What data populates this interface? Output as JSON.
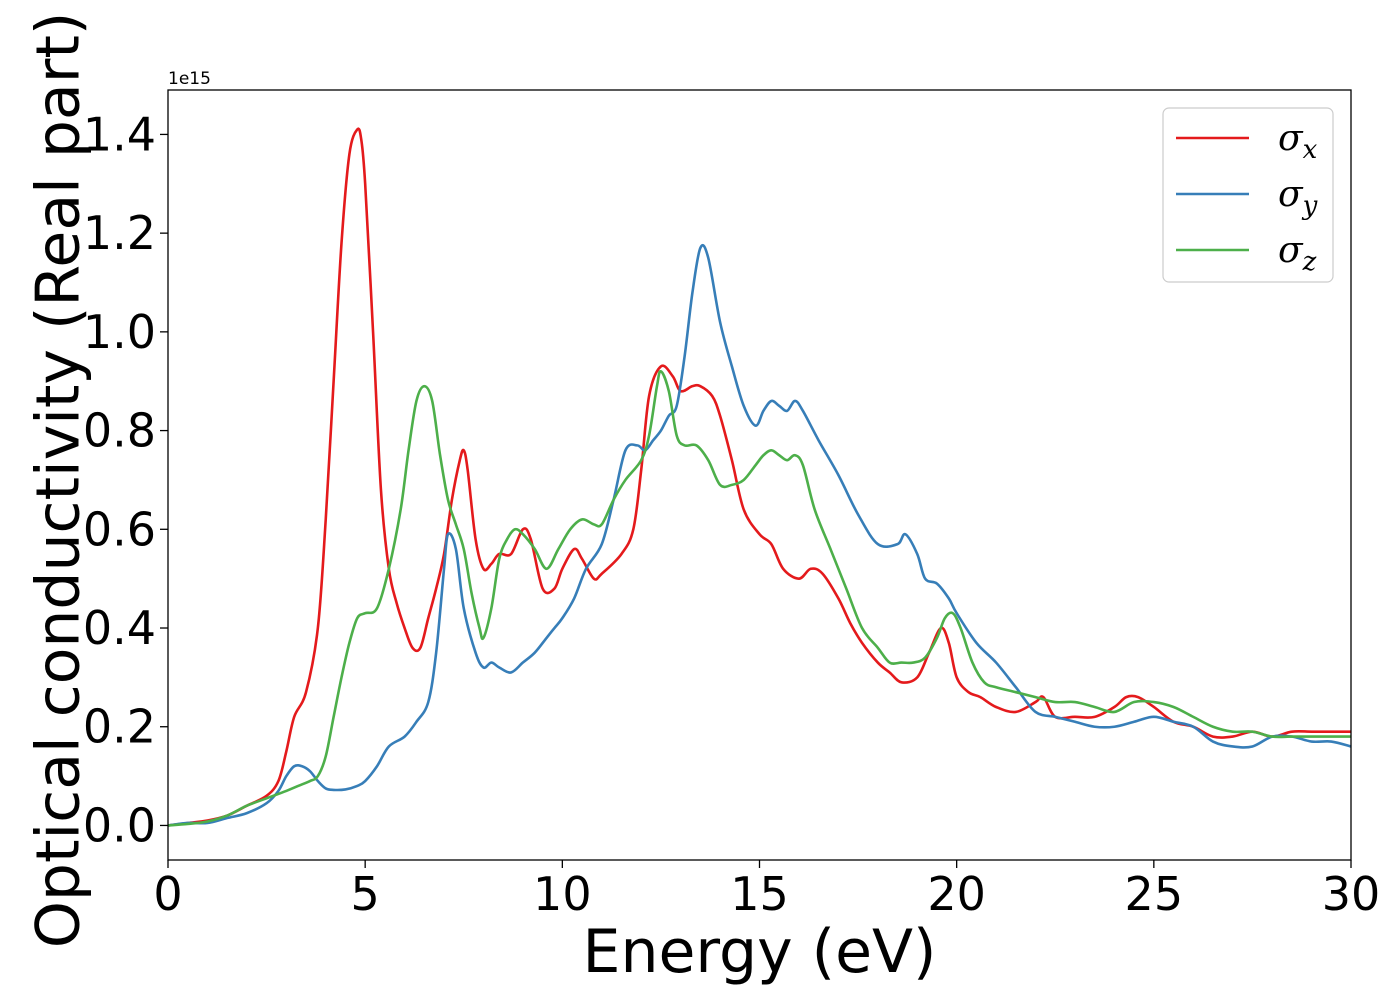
{
  "chart_data": {
    "type": "line",
    "title": "",
    "xlabel": "Energy (eV)",
    "ylabel": "Optical conductivity (Real part)",
    "y_offset_label": "1e15",
    "xlim": [
      0,
      30
    ],
    "ylim": [
      -0.07,
      1.49
    ],
    "xticks": [
      0,
      5,
      10,
      15,
      20,
      25,
      30
    ],
    "xtick_labels": [
      "0",
      "5",
      "10",
      "15",
      "20",
      "25",
      "30"
    ],
    "yticks": [
      0.0,
      0.2,
      0.4,
      0.6,
      0.8,
      1.0,
      1.2,
      1.4
    ],
    "ytick_labels": [
      "0.0",
      "0.2",
      "0.4",
      "0.6",
      "0.8",
      "1.0",
      "1.2",
      "1.4"
    ],
    "grid": false,
    "legend_position": "top-right",
    "series": [
      {
        "name": "σ",
        "subscript": "x",
        "color": "#e41a1c",
        "x": [
          0,
          0.5,
          1,
          1.5,
          2,
          2.5,
          2.8,
          3.0,
          3.2,
          3.5,
          3.8,
          4.0,
          4.2,
          4.4,
          4.6,
          4.8,
          4.9,
          5.0,
          5.2,
          5.4,
          5.6,
          5.8,
          6.0,
          6.2,
          6.4,
          6.6,
          6.8,
          7.0,
          7.2,
          7.4,
          7.5,
          7.6,
          7.8,
          8.0,
          8.2,
          8.4,
          8.7,
          9.0,
          9.2,
          9.5,
          9.8,
          10.0,
          10.3,
          10.5,
          10.8,
          11.0,
          11.5,
          11.8,
          12.0,
          12.2,
          12.5,
          12.8,
          13.0,
          13.3,
          13.5,
          13.8,
          14.0,
          14.3,
          14.6,
          15.0,
          15.3,
          15.6,
          16.0,
          16.3,
          16.6,
          17.0,
          17.3,
          17.6,
          18.0,
          18.3,
          18.6,
          19.0,
          19.3,
          19.6,
          19.8,
          20.0,
          20.3,
          20.6,
          21.0,
          21.5,
          22.0,
          22.2,
          22.5,
          23.0,
          23.5,
          24.0,
          24.3,
          24.6,
          25.0,
          25.5,
          26.0,
          26.5,
          27.0,
          27.5,
          28.0,
          28.5,
          29.0,
          29.5,
          30.0
        ],
        "values": [
          0.0,
          0.005,
          0.01,
          0.02,
          0.04,
          0.06,
          0.09,
          0.15,
          0.22,
          0.27,
          0.4,
          0.62,
          0.9,
          1.18,
          1.36,
          1.41,
          1.39,
          1.3,
          1.0,
          0.68,
          0.52,
          0.45,
          0.4,
          0.36,
          0.36,
          0.42,
          0.48,
          0.55,
          0.66,
          0.74,
          0.76,
          0.72,
          0.58,
          0.52,
          0.53,
          0.55,
          0.55,
          0.6,
          0.58,
          0.48,
          0.48,
          0.52,
          0.56,
          0.54,
          0.5,
          0.51,
          0.55,
          0.6,
          0.72,
          0.87,
          0.93,
          0.91,
          0.88,
          0.89,
          0.89,
          0.87,
          0.83,
          0.74,
          0.64,
          0.59,
          0.57,
          0.52,
          0.5,
          0.52,
          0.51,
          0.46,
          0.41,
          0.37,
          0.33,
          0.31,
          0.29,
          0.3,
          0.35,
          0.4,
          0.37,
          0.3,
          0.27,
          0.26,
          0.24,
          0.23,
          0.25,
          0.26,
          0.22,
          0.22,
          0.22,
          0.24,
          0.26,
          0.26,
          0.24,
          0.21,
          0.2,
          0.18,
          0.18,
          0.19,
          0.18,
          0.19,
          0.19,
          0.19,
          0.19
        ]
      },
      {
        "name": "σ",
        "subscript": "y",
        "color": "#377eb8",
        "x": [
          0,
          0.5,
          1,
          1.5,
          2,
          2.5,
          2.8,
          3.0,
          3.2,
          3.4,
          3.6,
          3.8,
          4.0,
          4.2,
          4.5,
          4.8,
          5.0,
          5.3,
          5.6,
          6.0,
          6.3,
          6.6,
          6.8,
          7.0,
          7.1,
          7.3,
          7.5,
          7.8,
          8.0,
          8.2,
          8.4,
          8.7,
          9.0,
          9.3,
          9.6,
          9.8,
          10.0,
          10.3,
          10.6,
          11.0,
          11.3,
          11.6,
          11.9,
          12.1,
          12.3,
          12.5,
          12.7,
          12.9,
          13.1,
          13.3,
          13.5,
          13.7,
          14.0,
          14.3,
          14.6,
          14.9,
          15.1,
          15.3,
          15.5,
          15.7,
          15.9,
          16.1,
          16.5,
          17.0,
          17.5,
          18.0,
          18.5,
          18.7,
          19.0,
          19.2,
          19.5,
          19.8,
          20.0,
          20.5,
          21.0,
          21.5,
          22.0,
          22.5,
          23.0,
          23.5,
          24.0,
          24.5,
          25.0,
          25.5,
          26.0,
          26.5,
          27.0,
          27.5,
          28.0,
          28.5,
          29.0,
          29.5,
          30.0
        ],
        "values": [
          0.0,
          0.005,
          0.005,
          0.015,
          0.025,
          0.045,
          0.07,
          0.1,
          0.12,
          0.12,
          0.11,
          0.09,
          0.075,
          0.072,
          0.073,
          0.08,
          0.09,
          0.12,
          0.16,
          0.18,
          0.21,
          0.25,
          0.35,
          0.52,
          0.59,
          0.56,
          0.44,
          0.35,
          0.32,
          0.33,
          0.32,
          0.31,
          0.33,
          0.35,
          0.38,
          0.4,
          0.42,
          0.46,
          0.52,
          0.57,
          0.66,
          0.76,
          0.77,
          0.76,
          0.78,
          0.8,
          0.83,
          0.85,
          0.95,
          1.08,
          1.17,
          1.15,
          1.02,
          0.93,
          0.85,
          0.81,
          0.84,
          0.86,
          0.85,
          0.84,
          0.86,
          0.84,
          0.78,
          0.71,
          0.63,
          0.57,
          0.57,
          0.59,
          0.55,
          0.5,
          0.49,
          0.46,
          0.43,
          0.37,
          0.33,
          0.28,
          0.23,
          0.22,
          0.21,
          0.2,
          0.2,
          0.21,
          0.22,
          0.21,
          0.2,
          0.17,
          0.16,
          0.16,
          0.18,
          0.18,
          0.17,
          0.17,
          0.16
        ]
      },
      {
        "name": "σ",
        "subscript": "z",
        "color": "#4daf4a",
        "x": [
          0,
          0.5,
          1,
          1.5,
          2,
          2.5,
          3.0,
          3.3,
          3.6,
          3.8,
          4.0,
          4.2,
          4.4,
          4.6,
          4.8,
          5.0,
          5.3,
          5.6,
          5.9,
          6.1,
          6.3,
          6.5,
          6.7,
          6.9,
          7.1,
          7.3,
          7.5,
          7.7,
          7.9,
          8.0,
          8.2,
          8.4,
          8.6,
          8.8,
          9.0,
          9.3,
          9.6,
          9.9,
          10.2,
          10.5,
          10.8,
          11.0,
          11.3,
          11.6,
          12.0,
          12.2,
          12.4,
          12.5,
          12.7,
          12.9,
          13.1,
          13.4,
          13.7,
          14.0,
          14.3,
          14.6,
          14.9,
          15.1,
          15.3,
          15.5,
          15.7,
          15.9,
          16.1,
          16.4,
          16.8,
          17.2,
          17.6,
          18.0,
          18.3,
          18.6,
          18.9,
          19.2,
          19.5,
          19.7,
          19.9,
          20.1,
          20.4,
          20.7,
          21.0,
          21.5,
          22.0,
          22.5,
          23.0,
          23.5,
          24.0,
          24.5,
          25.0,
          25.5,
          26.0,
          26.5,
          27.0,
          27.5,
          28.0,
          28.5,
          29.0,
          29.5,
          30.0
        ],
        "values": [
          0.0,
          0.003,
          0.008,
          0.02,
          0.04,
          0.055,
          0.07,
          0.08,
          0.09,
          0.1,
          0.14,
          0.22,
          0.3,
          0.37,
          0.42,
          0.43,
          0.44,
          0.52,
          0.64,
          0.76,
          0.86,
          0.89,
          0.86,
          0.75,
          0.66,
          0.61,
          0.56,
          0.47,
          0.4,
          0.38,
          0.44,
          0.54,
          0.58,
          0.6,
          0.59,
          0.56,
          0.52,
          0.56,
          0.6,
          0.62,
          0.61,
          0.61,
          0.66,
          0.7,
          0.74,
          0.79,
          0.89,
          0.92,
          0.88,
          0.79,
          0.77,
          0.77,
          0.74,
          0.69,
          0.69,
          0.7,
          0.73,
          0.75,
          0.76,
          0.75,
          0.74,
          0.75,
          0.73,
          0.64,
          0.56,
          0.48,
          0.4,
          0.36,
          0.33,
          0.33,
          0.33,
          0.34,
          0.38,
          0.42,
          0.43,
          0.4,
          0.33,
          0.29,
          0.28,
          0.27,
          0.26,
          0.25,
          0.25,
          0.24,
          0.23,
          0.25,
          0.25,
          0.24,
          0.22,
          0.2,
          0.19,
          0.19,
          0.18,
          0.18,
          0.18,
          0.18,
          0.18
        ]
      }
    ]
  }
}
